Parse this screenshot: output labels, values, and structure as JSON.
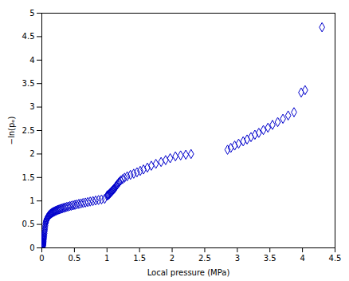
{
  "chart_data": {
    "type": "scatter",
    "xlabel": "Local pressure (MPa)",
    "ylabel": "−ln(pₑ)",
    "color": "#0000CC",
    "marker": "diamond",
    "grid": false,
    "xlim": [
      0,
      4.5
    ],
    "ylim": [
      0,
      5
    ],
    "xticks": [
      0,
      0.5,
      1,
      1.5,
      2,
      2.5,
      3,
      3.5,
      4,
      4.5
    ],
    "yticks": [
      0,
      0.5,
      1,
      1.5,
      2,
      2.5,
      3,
      3.5,
      4,
      4.5,
      5
    ],
    "x": [
      0.003,
      0.005,
      0.006,
      0.007,
      0.008,
      0.009,
      0.01,
      0.011,
      0.012,
      0.013,
      0.014,
      0.015,
      0.016,
      0.017,
      0.018,
      0.019,
      0.02,
      0.021,
      0.022,
      0.023,
      0.025,
      0.027,
      0.029,
      0.031,
      0.033,
      0.036,
      0.039,
      0.042,
      0.045,
      0.049,
      0.053,
      0.057,
      0.062,
      0.067,
      0.072,
      0.078,
      0.084,
      0.09,
      0.097,
      0.104,
      0.112,
      0.12,
      0.129,
      0.138,
      0.148,
      0.158,
      0.169,
      0.181,
      0.193,
      0.206,
      0.22,
      0.234,
      0.249,
      0.265,
      0.282,
      0.3,
      0.318,
      0.338,
      0.359,
      0.381,
      0.404,
      0.428,
      0.453,
      0.48,
      0.508,
      0.537,
      0.568,
      0.6,
      0.633,
      0.668,
      0.705,
      0.743,
      0.784,
      0.826,
      0.87,
      0.916,
      0.964,
      1.0,
      1.01,
      1.02,
      1.03,
      1.04,
      1.05,
      1.06,
      1.07,
      1.08,
      1.09,
      1.1,
      1.11,
      1.12,
      1.13,
      1.14,
      1.15,
      1.16,
      1.175,
      1.19,
      1.21,
      1.24,
      1.27,
      1.31,
      1.36,
      1.41,
      1.46,
      1.51,
      1.56,
      1.62,
      1.68,
      1.75,
      1.83,
      1.9,
      1.97,
      2.05,
      2.13,
      2.21,
      2.29,
      2.85,
      2.9,
      2.96,
      3.02,
      3.09,
      3.15,
      3.21,
      3.27,
      3.33,
      3.4,
      3.47,
      3.54,
      3.62,
      3.7,
      3.78,
      3.87,
      3.98,
      4.04,
      4.3
    ],
    "values": [
      0.002,
      0.004,
      0.007,
      0.01,
      0.013,
      0.017,
      0.021,
      0.026,
      0.031,
      0.036,
      0.042,
      0.049,
      0.056,
      0.063,
      0.071,
      0.079,
      0.088,
      0.097,
      0.107,
      0.117,
      0.139,
      0.162,
      0.187,
      0.213,
      0.242,
      0.274,
      0.308,
      0.345,
      0.384,
      0.426,
      0.471,
      0.519,
      0.55,
      0.575,
      0.598,
      0.618,
      0.636,
      0.653,
      0.668,
      0.682,
      0.695,
      0.707,
      0.718,
      0.729,
      0.739,
      0.749,
      0.758,
      0.767,
      0.776,
      0.785,
      0.794,
      0.802,
      0.811,
      0.819,
      0.827,
      0.836,
      0.844,
      0.853,
      0.862,
      0.871,
      0.88,
      0.889,
      0.898,
      0.907,
      0.916,
      0.926,
      0.936,
      0.946,
      0.956,
      0.966,
      0.976,
      0.987,
      0.998,
      1.009,
      1.02,
      1.032,
      1.044,
      1.11,
      1.12,
      1.13,
      1.14,
      1.155,
      1.17,
      1.185,
      1.2,
      1.215,
      1.23,
      1.245,
      1.26,
      1.275,
      1.295,
      1.315,
      1.335,
      1.355,
      1.38,
      1.405,
      1.435,
      1.465,
      1.495,
      1.525,
      1.555,
      1.58,
      1.61,
      1.64,
      1.67,
      1.71,
      1.75,
      1.79,
      1.83,
      1.87,
      1.91,
      1.95,
      1.97,
      1.985,
      2.0,
      2.09,
      2.13,
      2.18,
      2.22,
      2.27,
      2.31,
      2.36,
      2.41,
      2.45,
      2.51,
      2.56,
      2.62,
      2.68,
      2.75,
      2.82,
      2.89,
      3.31,
      3.36,
      4.7
    ]
  }
}
